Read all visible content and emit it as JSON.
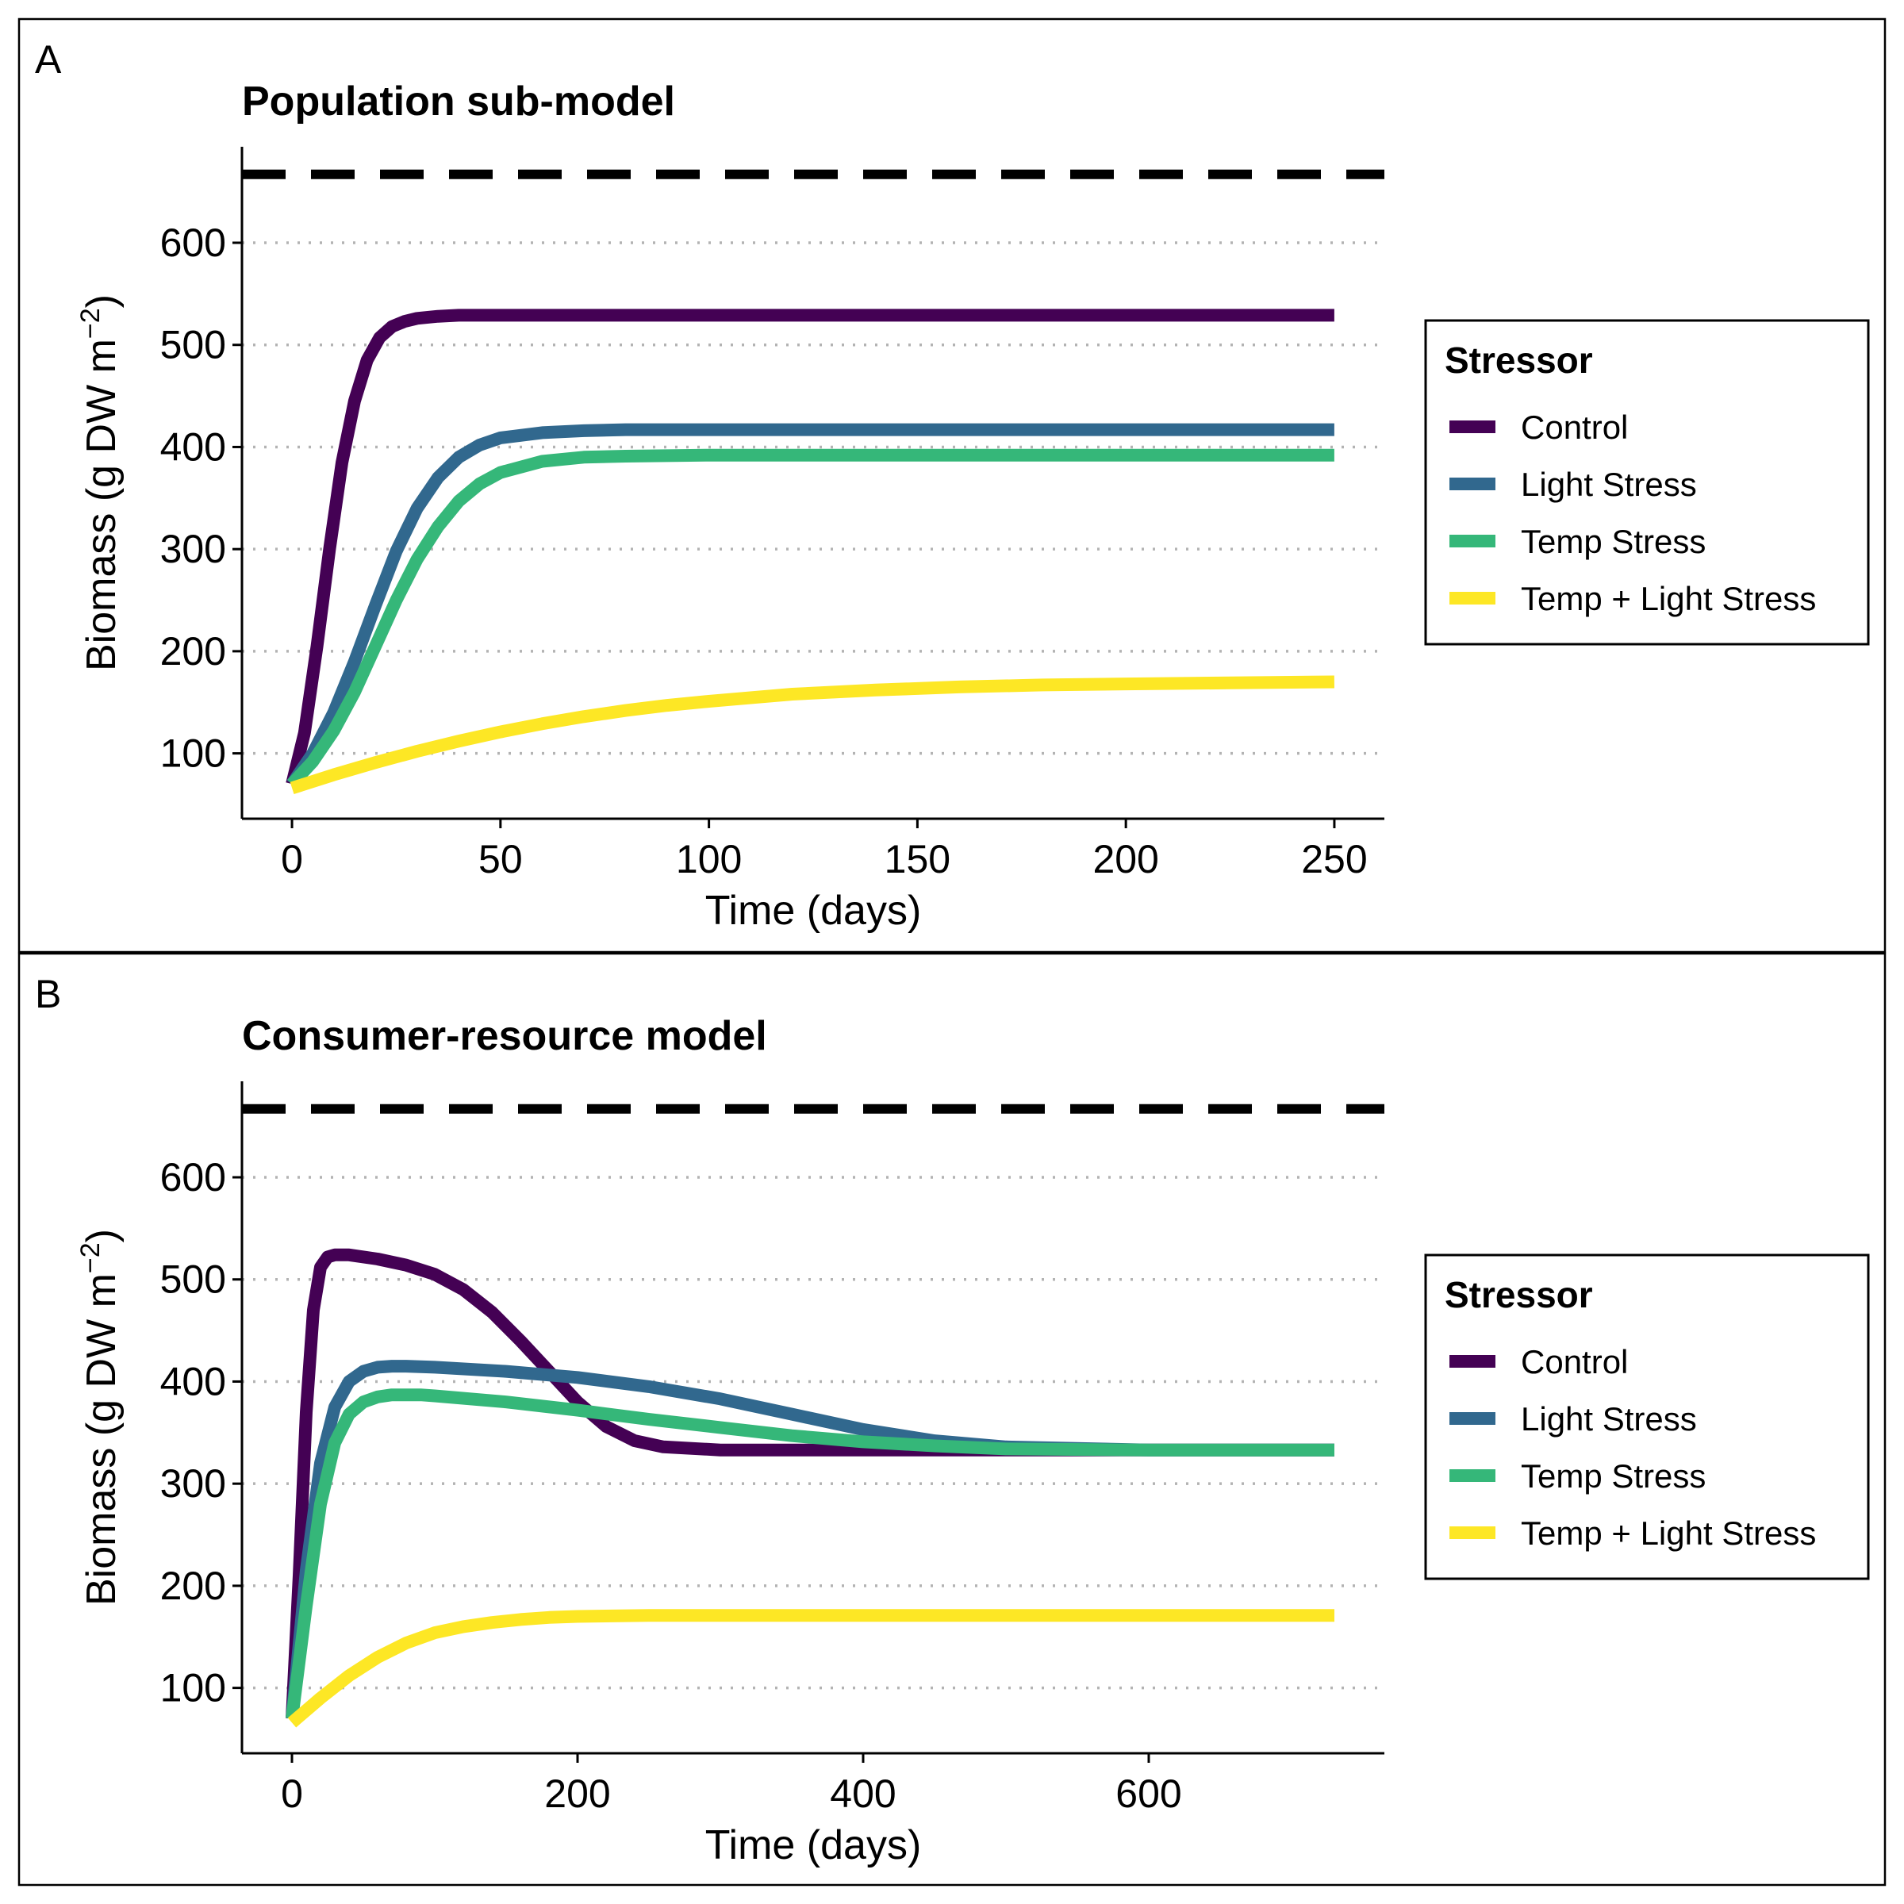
{
  "chart_data": [
    {
      "panel": "A",
      "type": "line",
      "title": "Population sub-model",
      "xlabel": "Time (days)",
      "ylabel": "Biomass (g DW m",
      "ylabel_sup": "−2",
      "xlim": [
        -12,
        262
      ],
      "ylim": [
        36,
        694
      ],
      "xticks": [
        0,
        50,
        100,
        150,
        200,
        250
      ],
      "yticks": [
        100,
        200,
        300,
        400,
        500,
        600
      ],
      "grid": "horizontal dotted",
      "reference_line": 667,
      "legend": {
        "title": "Stressor",
        "position": "right"
      },
      "series": [
        {
          "name": "Control",
          "color": "#440154",
          "x": [
            0,
            3,
            6,
            9,
            12,
            15,
            18,
            21,
            24,
            27,
            30,
            35,
            40,
            50,
            60,
            80,
            100,
            150,
            200,
            250
          ],
          "y": [
            70,
            120,
            205,
            300,
            385,
            445,
            485,
            507,
            518,
            523,
            526,
            528,
            529,
            529,
            529,
            529,
            529,
            529,
            529,
            529
          ]
        },
        {
          "name": "Light Stress",
          "color": "#31688e",
          "x": [
            0,
            5,
            10,
            15,
            20,
            25,
            30,
            35,
            40,
            45,
            50,
            60,
            70,
            80,
            100,
            150,
            200,
            250
          ],
          "y": [
            70,
            100,
            140,
            190,
            245,
            298,
            340,
            370,
            390,
            402,
            409,
            414,
            416,
            417,
            417,
            417,
            417,
            417
          ]
        },
        {
          "name": "Temp Stress",
          "color": "#35b779",
          "x": [
            0,
            5,
            10,
            15,
            20,
            25,
            30,
            35,
            40,
            45,
            50,
            60,
            70,
            80,
            100,
            150,
            200,
            250
          ],
          "y": [
            70,
            92,
            122,
            160,
            205,
            250,
            290,
            322,
            347,
            364,
            375,
            386,
            390,
            391,
            392,
            392,
            392,
            392
          ]
        },
        {
          "name": "Temp + Light Stress",
          "color": "#fde725",
          "x": [
            0,
            10,
            20,
            30,
            40,
            50,
            60,
            70,
            80,
            90,
            100,
            120,
            140,
            160,
            180,
            200,
            225,
            250
          ],
          "y": [
            66,
            79,
            91,
            102,
            112,
            121,
            129,
            136,
            142,
            147,
            151,
            158,
            162,
            165,
            167,
            168,
            169,
            170
          ]
        }
      ]
    },
    {
      "panel": "B",
      "type": "line",
      "title": "Consumer-resource model",
      "xlabel": "Time (days)",
      "ylabel": "Biomass (g DW m",
      "ylabel_sup": "−2",
      "xlim": [
        -35,
        765
      ],
      "ylim": [
        36,
        694
      ],
      "xticks": [
        0,
        200,
        400,
        600
      ],
      "yticks": [
        100,
        200,
        300,
        400,
        500,
        600
      ],
      "grid": "horizontal dotted",
      "reference_line": 667,
      "legend": {
        "title": "Stressor",
        "position": "right"
      },
      "series": [
        {
          "name": "Control",
          "color": "#440154",
          "x": [
            0,
            5,
            10,
            15,
            20,
            25,
            30,
            40,
            60,
            80,
            100,
            120,
            140,
            160,
            180,
            200,
            220,
            240,
            260,
            300,
            350,
            400,
            500,
            600,
            730
          ],
          "y": [
            70,
            210,
            370,
            470,
            512,
            522,
            524,
            524,
            520,
            514,
            505,
            490,
            468,
            440,
            410,
            380,
            356,
            342,
            336,
            333,
            333,
            333,
            333,
            333,
            333
          ]
        },
        {
          "name": "Light Stress",
          "color": "#31688e",
          "x": [
            0,
            10,
            20,
            30,
            40,
            50,
            60,
            70,
            80,
            100,
            150,
            200,
            250,
            300,
            350,
            400,
            450,
            500,
            600,
            730
          ],
          "y": [
            70,
            215,
            320,
            375,
            400,
            410,
            414,
            415,
            415,
            414,
            410,
            404,
            395,
            383,
            368,
            353,
            342,
            336,
            333,
            333
          ]
        },
        {
          "name": "Temp Stress",
          "color": "#35b779",
          "x": [
            0,
            10,
            20,
            30,
            40,
            50,
            60,
            70,
            80,
            90,
            100,
            150,
            200,
            250,
            300,
            350,
            400,
            450,
            500,
            600,
            730
          ],
          "y": [
            70,
            180,
            280,
            340,
            368,
            380,
            385,
            387,
            387,
            387,
            386,
            380,
            372,
            363,
            355,
            347,
            341,
            337,
            334,
            333,
            333
          ]
        },
        {
          "name": "Temp + Light Stress",
          "color": "#fde725",
          "x": [
            0,
            20,
            40,
            60,
            80,
            100,
            120,
            140,
            160,
            180,
            200,
            250,
            300,
            400,
            500,
            600,
            730
          ],
          "y": [
            66,
            90,
            112,
            130,
            144,
            154,
            160,
            164,
            167,
            169,
            170,
            171,
            171,
            171,
            171,
            171,
            171
          ]
        }
      ]
    }
  ]
}
